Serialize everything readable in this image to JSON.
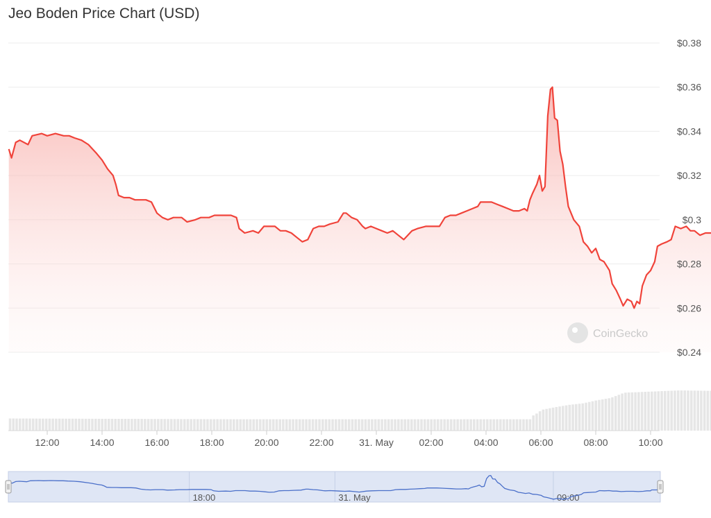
{
  "title": "Jeo Boden Price Chart (USD)",
  "watermark": "CoinGecko",
  "colors": {
    "line": "#f0433a",
    "fill": "#fbd4d2",
    "volume": "#e6e6e6",
    "navigator_line": "#4a6fc9",
    "navigator_fill": "#dfe6f5"
  },
  "chart_data": {
    "type": "area",
    "x_unit": "hours since 11:00 (30 May)",
    "y_ticks": [
      "$0.38",
      "$0.36",
      "$0.34",
      "$0.32",
      "$0.3",
      "$0.28",
      "$0.26",
      "$0.24"
    ],
    "y_tick_values": [
      0.38,
      0.36,
      0.34,
      0.32,
      0.3,
      0.28,
      0.26,
      0.24
    ],
    "ylim": [
      0.24,
      0.38
    ],
    "x_ticks": [
      {
        "label": "12:00",
        "h": 1
      },
      {
        "label": "14:00",
        "h": 3
      },
      {
        "label": "16:00",
        "h": 5
      },
      {
        "label": "18:00",
        "h": 7
      },
      {
        "label": "20:00",
        "h": 9
      },
      {
        "label": "22:00",
        "h": 11
      },
      {
        "label": "31. May",
        "h": 13
      },
      {
        "label": "02:00",
        "h": 15
      },
      {
        "label": "04:00",
        "h": 17
      },
      {
        "label": "06:00",
        "h": 19
      },
      {
        "label": "08:00",
        "h": 21
      },
      {
        "label": "10:00",
        "h": 23
      }
    ],
    "navigator_ticks": [
      {
        "label": "18:00",
        "h": 7
      },
      {
        "label": "31. May",
        "h": 13
      },
      {
        "label": "09:00",
        "h": 22
      }
    ],
    "series": [
      {
        "name": "Price",
        "points": [
          [
            -0.4,
            0.332
          ],
          [
            -0.3,
            0.328
          ],
          [
            -0.15,
            0.335
          ],
          [
            0.0,
            0.336
          ],
          [
            0.3,
            0.334
          ],
          [
            0.45,
            0.338
          ],
          [
            0.8,
            0.339
          ],
          [
            1.0,
            0.338
          ],
          [
            1.3,
            0.339
          ],
          [
            1.6,
            0.338
          ],
          [
            1.8,
            0.338
          ],
          [
            2.0,
            0.337
          ],
          [
            2.25,
            0.336
          ],
          [
            2.5,
            0.334
          ],
          [
            2.8,
            0.33
          ],
          [
            3.0,
            0.327
          ],
          [
            3.2,
            0.323
          ],
          [
            3.4,
            0.32
          ],
          [
            3.5,
            0.316
          ],
          [
            3.6,
            0.311
          ],
          [
            3.8,
            0.31
          ],
          [
            4.0,
            0.31
          ],
          [
            4.2,
            0.309
          ],
          [
            4.4,
            0.309
          ],
          [
            4.6,
            0.309
          ],
          [
            4.8,
            0.308
          ],
          [
            5.0,
            0.303
          ],
          [
            5.2,
            0.301
          ],
          [
            5.4,
            0.3
          ],
          [
            5.6,
            0.301
          ],
          [
            5.9,
            0.301
          ],
          [
            6.1,
            0.299
          ],
          [
            6.4,
            0.3
          ],
          [
            6.6,
            0.301
          ],
          [
            6.9,
            0.301
          ],
          [
            7.1,
            0.302
          ],
          [
            7.4,
            0.302
          ],
          [
            7.7,
            0.302
          ],
          [
            7.9,
            0.301
          ],
          [
            8.0,
            0.296
          ],
          [
            8.2,
            0.294
          ],
          [
            8.5,
            0.295
          ],
          [
            8.7,
            0.294
          ],
          [
            8.9,
            0.297
          ],
          [
            9.1,
            0.297
          ],
          [
            9.3,
            0.297
          ],
          [
            9.5,
            0.295
          ],
          [
            9.7,
            0.295
          ],
          [
            9.9,
            0.294
          ],
          [
            10.1,
            0.292
          ],
          [
            10.3,
            0.29
          ],
          [
            10.5,
            0.291
          ],
          [
            10.7,
            0.296
          ],
          [
            10.9,
            0.297
          ],
          [
            11.1,
            0.297
          ],
          [
            11.3,
            0.298
          ],
          [
            11.6,
            0.299
          ],
          [
            11.8,
            0.303
          ],
          [
            11.9,
            0.303
          ],
          [
            12.1,
            0.301
          ],
          [
            12.3,
            0.3
          ],
          [
            12.5,
            0.297
          ],
          [
            12.6,
            0.296
          ],
          [
            12.8,
            0.297
          ],
          [
            13.0,
            0.296
          ],
          [
            13.2,
            0.295
          ],
          [
            13.4,
            0.294
          ],
          [
            13.6,
            0.295
          ],
          [
            13.8,
            0.293
          ],
          [
            14.0,
            0.291
          ],
          [
            14.3,
            0.295
          ],
          [
            14.5,
            0.296
          ],
          [
            14.8,
            0.297
          ],
          [
            15.1,
            0.297
          ],
          [
            15.3,
            0.297
          ],
          [
            15.5,
            0.301
          ],
          [
            15.7,
            0.302
          ],
          [
            15.9,
            0.302
          ],
          [
            16.1,
            0.303
          ],
          [
            16.3,
            0.304
          ],
          [
            16.5,
            0.305
          ],
          [
            16.7,
            0.306
          ],
          [
            16.8,
            0.308
          ],
          [
            17.0,
            0.308
          ],
          [
            17.2,
            0.308
          ],
          [
            17.4,
            0.307
          ],
          [
            17.6,
            0.306
          ],
          [
            17.8,
            0.305
          ],
          [
            18.0,
            0.304
          ],
          [
            18.2,
            0.304
          ],
          [
            18.4,
            0.305
          ],
          [
            18.5,
            0.304
          ],
          [
            18.6,
            0.309
          ],
          [
            18.7,
            0.312
          ],
          [
            18.85,
            0.316
          ],
          [
            18.95,
            0.32
          ],
          [
            19.05,
            0.313
          ],
          [
            19.15,
            0.315
          ],
          [
            19.25,
            0.347
          ],
          [
            19.35,
            0.359
          ],
          [
            19.42,
            0.36
          ],
          [
            19.5,
            0.346
          ],
          [
            19.6,
            0.345
          ],
          [
            19.7,
            0.331
          ],
          [
            19.8,
            0.325
          ],
          [
            19.9,
            0.315
          ],
          [
            20.0,
            0.306
          ],
          [
            20.2,
            0.3
          ],
          [
            20.4,
            0.297
          ],
          [
            20.55,
            0.29
          ],
          [
            20.7,
            0.288
          ],
          [
            20.85,
            0.285
          ],
          [
            21.0,
            0.287
          ],
          [
            21.15,
            0.282
          ],
          [
            21.3,
            0.281
          ],
          [
            21.5,
            0.277
          ],
          [
            21.6,
            0.271
          ],
          [
            21.75,
            0.268
          ],
          [
            21.9,
            0.264
          ],
          [
            22.0,
            0.261
          ],
          [
            22.15,
            0.264
          ],
          [
            22.3,
            0.263
          ],
          [
            22.4,
            0.26
          ],
          [
            22.5,
            0.263
          ],
          [
            22.6,
            0.262
          ],
          [
            22.7,
            0.27
          ],
          [
            22.85,
            0.275
          ],
          [
            23.0,
            0.277
          ],
          [
            23.15,
            0.281
          ],
          [
            23.25,
            0.288
          ],
          [
            23.4,
            0.289
          ],
          [
            23.6,
            0.29
          ],
          [
            23.75,
            0.291
          ],
          [
            23.9,
            0.297
          ],
          [
            24.1,
            0.296
          ],
          [
            24.3,
            0.297
          ],
          [
            24.45,
            0.295
          ],
          [
            24.6,
            0.295
          ],
          [
            24.8,
            0.293
          ],
          [
            25.0,
            0.294
          ],
          [
            25.3,
            0.294
          ],
          [
            25.5,
            0.293
          ],
          [
            25.7,
            0.294
          ],
          [
            25.85,
            0.296
          ],
          [
            26.0,
            0.296
          ],
          [
            26.05,
            0.3
          ],
          [
            26.25,
            0.3
          ],
          [
            26.35,
            0.301
          ]
        ]
      }
    ],
    "volume_bars": [
      [
        -0.4,
        0.32
      ],
      [
        8.0,
        0.3
      ],
      [
        18.6,
        0.3
      ],
      [
        18.7,
        0.4
      ],
      [
        19.0,
        0.55
      ],
      [
        19.5,
        0.62
      ],
      [
        20.0,
        0.68
      ],
      [
        20.5,
        0.72
      ],
      [
        21.0,
        0.8
      ],
      [
        21.5,
        0.86
      ],
      [
        22.0,
        1.0
      ],
      [
        23.0,
        1.03
      ],
      [
        24.0,
        1.06
      ],
      [
        25.0,
        1.05
      ],
      [
        26.35,
        1.04
      ]
    ],
    "grid": true
  }
}
